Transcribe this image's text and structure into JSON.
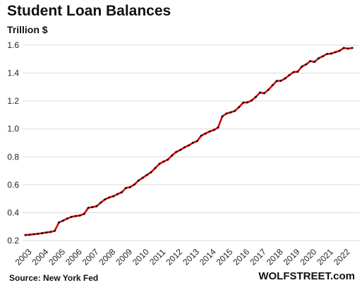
{
  "chart_data": {
    "type": "line",
    "title": "Student Loan Balances",
    "ylabel": "Trillion $",
    "xlabel": "",
    "ylim": [
      0.2,
      1.6
    ],
    "yticks": [
      "0.2",
      "0.4",
      "0.6",
      "0.8",
      "1.0",
      "1.2",
      "1.4",
      "1.6"
    ],
    "xticks": [
      "2003",
      "2004",
      "2005",
      "2006",
      "2007",
      "2008",
      "2009",
      "2010",
      "2011",
      "2012",
      "2013",
      "2014",
      "2015",
      "2016",
      "2017",
      "2018",
      "2019",
      "2020",
      "2021",
      "2022"
    ],
    "grid": "horizontal",
    "line_color": "#e00000",
    "marker_color": "#111111",
    "series": [
      {
        "x": [
          "2003 Q1",
          "2003 Q2",
          "2003 Q3",
          "2003 Q4",
          "2004 Q1",
          "2004 Q2",
          "2004 Q3",
          "2004 Q4",
          "2005 Q1",
          "2005 Q2",
          "2005 Q3",
          "2005 Q4",
          "2006 Q1",
          "2006 Q2",
          "2006 Q3",
          "2006 Q4",
          "2007 Q1",
          "2007 Q2",
          "2007 Q3",
          "2007 Q4",
          "2008 Q1",
          "2008 Q2",
          "2008 Q3",
          "2008 Q4",
          "2009 Q1",
          "2009 Q2",
          "2009 Q3",
          "2009 Q4",
          "2010 Q1",
          "2010 Q2",
          "2010 Q3",
          "2010 Q4",
          "2011 Q1",
          "2011 Q2",
          "2011 Q3",
          "2011 Q4",
          "2012 Q1",
          "2012 Q2",
          "2012 Q3",
          "2012 Q4",
          "2013 Q1",
          "2013 Q2",
          "2013 Q3",
          "2013 Q4",
          "2014 Q1",
          "2014 Q2",
          "2014 Q3",
          "2014 Q4",
          "2015 Q1",
          "2015 Q2",
          "2015 Q3",
          "2015 Q4",
          "2016 Q1",
          "2016 Q2",
          "2016 Q3",
          "2016 Q4",
          "2017 Q1",
          "2017 Q2",
          "2017 Q3",
          "2017 Q4",
          "2018 Q1",
          "2018 Q2",
          "2018 Q3",
          "2018 Q4",
          "2019 Q1",
          "2019 Q2",
          "2019 Q3",
          "2019 Q4",
          "2020 Q1",
          "2020 Q2",
          "2020 Q3",
          "2020 Q4",
          "2021 Q1",
          "2021 Q2",
          "2021 Q3",
          "2021 Q4",
          "2022 Q1",
          "2022 Q2",
          "2022 Q3"
        ],
        "values": [
          0.24,
          0.242,
          0.246,
          0.249,
          0.253,
          0.258,
          0.262,
          0.27,
          0.33,
          0.343,
          0.358,
          0.37,
          0.376,
          0.38,
          0.391,
          0.435,
          0.44,
          0.446,
          0.473,
          0.495,
          0.509,
          0.518,
          0.533,
          0.546,
          0.577,
          0.583,
          0.602,
          0.63,
          0.65,
          0.67,
          0.69,
          0.72,
          0.75,
          0.766,
          0.78,
          0.81,
          0.835,
          0.85,
          0.868,
          0.882,
          0.901,
          0.913,
          0.952,
          0.967,
          0.982,
          0.993,
          1.01,
          1.09,
          1.11,
          1.119,
          1.129,
          1.156,
          1.188,
          1.19,
          1.204,
          1.229,
          1.261,
          1.256,
          1.28,
          1.313,
          1.344,
          1.345,
          1.362,
          1.385,
          1.407,
          1.41,
          1.447,
          1.462,
          1.486,
          1.48,
          1.506,
          1.52,
          1.537,
          1.54,
          1.55,
          1.56,
          1.58,
          1.575,
          1.58
        ]
      }
    ]
  },
  "footer": {
    "source": "Source: New York Fed",
    "brand": "WOLFSTREET.com"
  }
}
